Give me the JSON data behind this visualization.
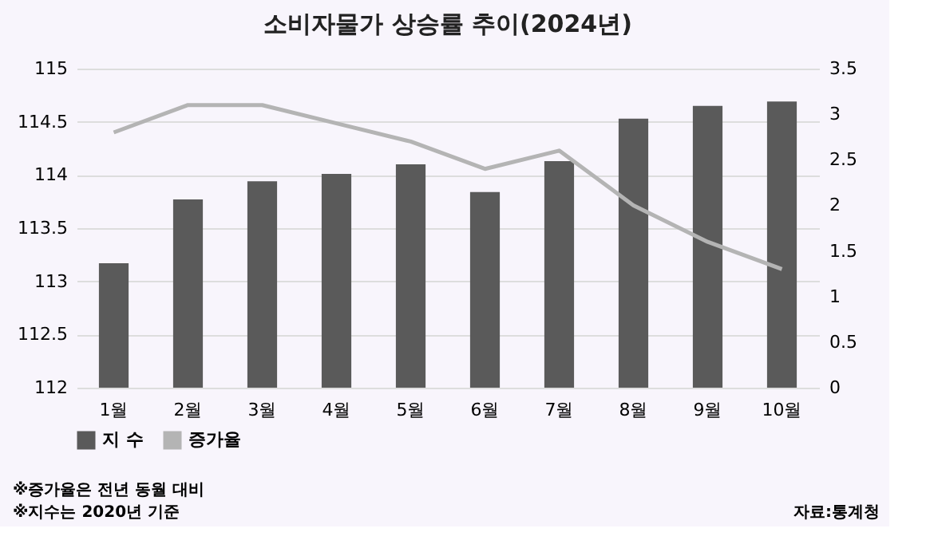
{
  "chart_data": {
    "type": "bar",
    "title": "소비자물가 상승률 추이(2024년)",
    "categories": [
      "1월",
      "2월",
      "3월",
      "4월",
      "5월",
      "6월",
      "7월",
      "8월",
      "9월",
      "10월"
    ],
    "series": [
      {
        "name": "지 수",
        "color": "#5a5a5a",
        "values": [
          113.17,
          113.77,
          113.94,
          114.01,
          114.1,
          113.84,
          114.13,
          114.53,
          114.65,
          114.69
        ]
      },
      {
        "name": "증가율",
        "type": "line",
        "axis": "y2",
        "color": "#b4b4b4",
        "values": [
          2.8,
          3.1,
          3.1,
          2.9,
          2.7,
          2.4,
          2.6,
          2.0,
          1.6,
          1.3
        ]
      }
    ],
    "ylim": [
      112,
      115
    ],
    "yticks": [
      112,
      112.5,
      113,
      113.5,
      114,
      114.5,
      115
    ],
    "y2lim": [
      0,
      3.5
    ],
    "y2ticks": [
      0,
      0.5,
      1,
      1.5,
      2,
      2.5,
      3,
      3.5
    ],
    "grid": "y",
    "legend": "bottom",
    "marker": "none",
    "line_style": "solid",
    "annotations": [
      "※증가율은 전년 동월 대비",
      "※지수는 2020년 기준",
      "자료:통계청"
    ]
  }
}
